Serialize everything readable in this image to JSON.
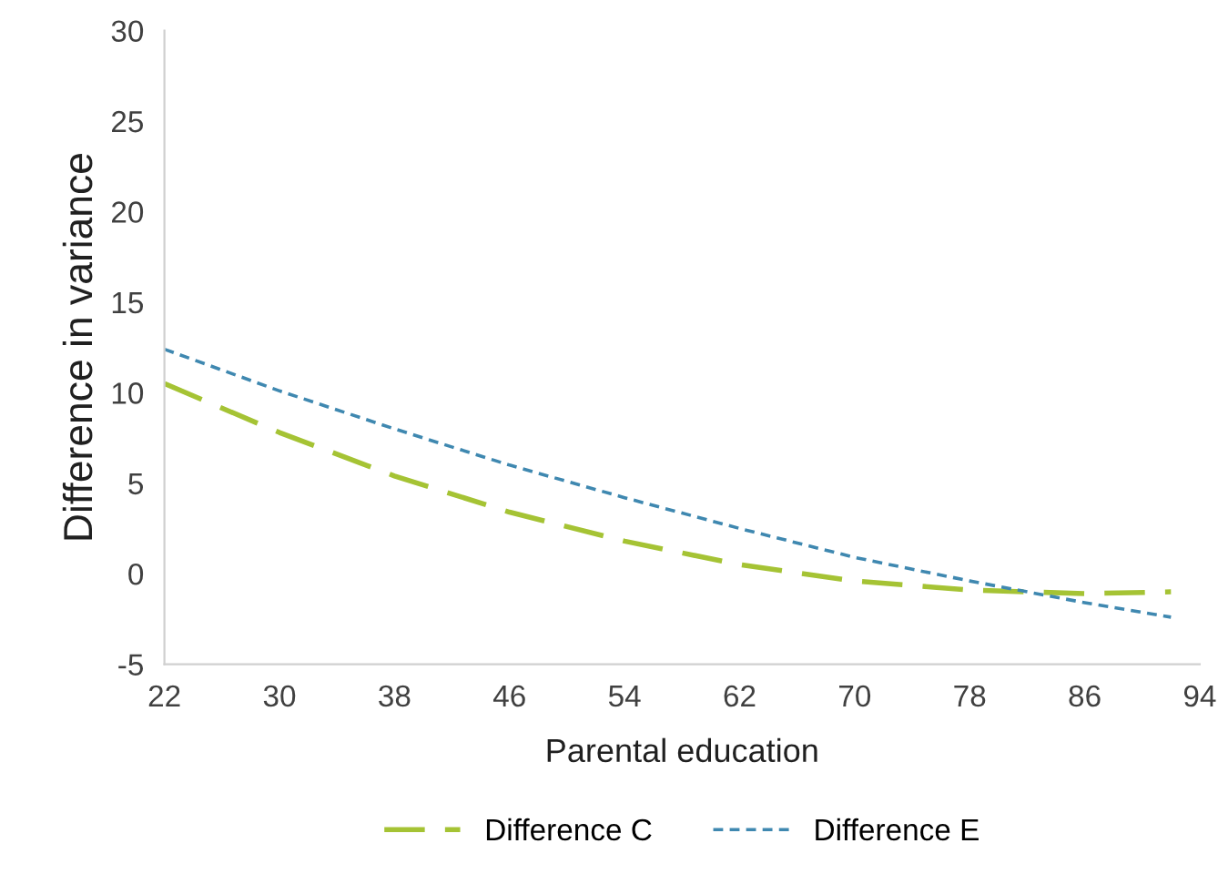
{
  "chart_data": {
    "type": "line",
    "xlabel": "Parental education",
    "ylabel": "Difference in variance",
    "x": [
      22,
      30,
      38,
      46,
      54,
      62,
      70,
      78,
      86,
      92
    ],
    "series": [
      {
        "name": "Difference C",
        "color": "#a5c334",
        "line_style": "dashed",
        "values": [
          10.5,
          7.8,
          5.4,
          3.4,
          1.8,
          0.5,
          -0.4,
          -0.9,
          -1.1,
          -1.0
        ]
      },
      {
        "name": "Difference E",
        "color": "#3f88b0",
        "line_style": "dotted",
        "values": [
          12.4,
          10.1,
          8.0,
          6.0,
          4.2,
          2.5,
          0.9,
          -0.4,
          -1.6,
          -2.4
        ]
      }
    ],
    "xlim": [
      22,
      94
    ],
    "xticks": [
      22,
      30,
      38,
      46,
      54,
      62,
      70,
      78,
      86,
      94
    ],
    "ylim": [
      -5,
      30
    ],
    "yticks": [
      -5,
      0,
      5,
      10,
      15,
      20,
      25,
      30
    ],
    "grid": false,
    "legend": "bottom",
    "marker": "none"
  }
}
